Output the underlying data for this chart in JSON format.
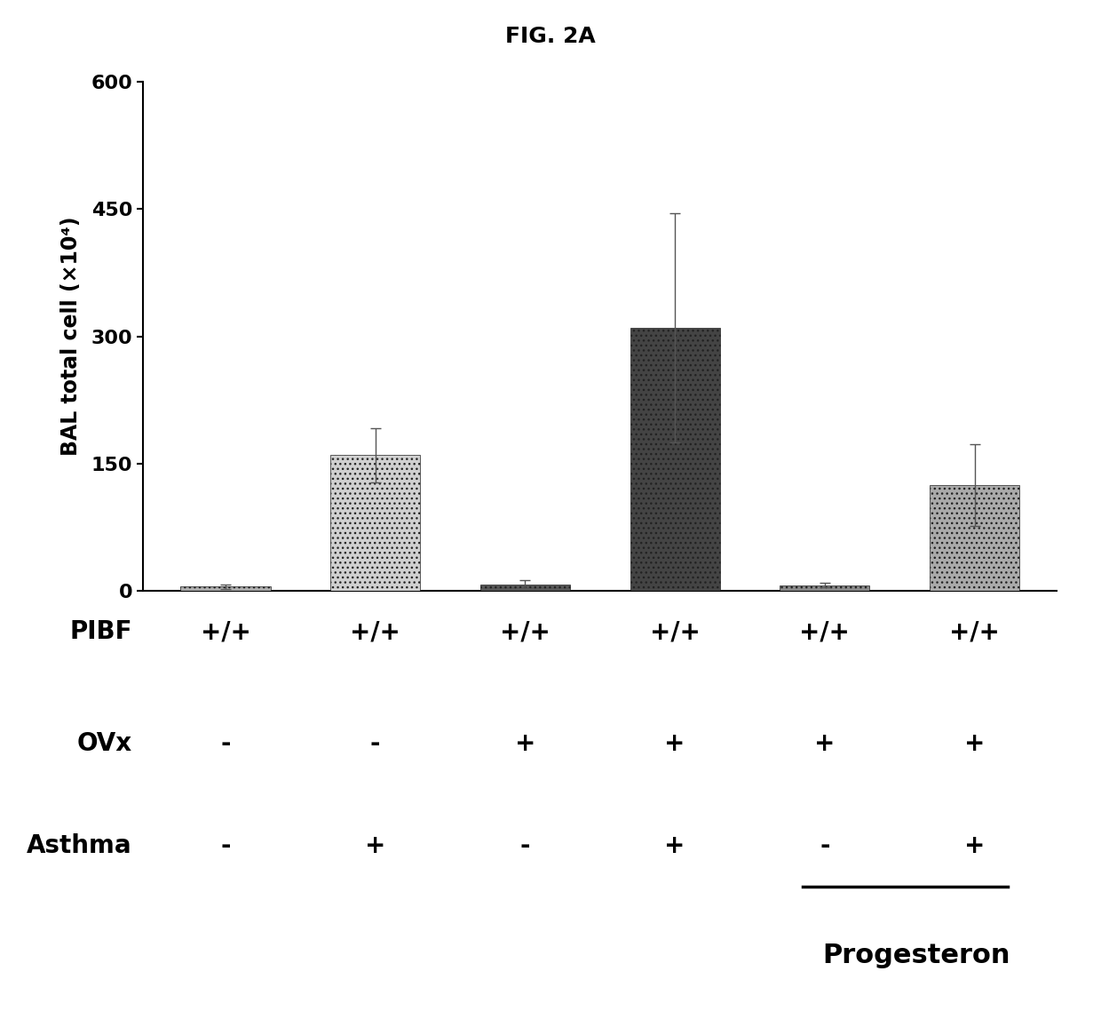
{
  "title": "FIG. 2A",
  "ylabel": "BAL total cell (×10⁴)",
  "bar_values": [
    5,
    160,
    8,
    310,
    7,
    125
  ],
  "bar_errors": [
    3,
    32,
    5,
    135,
    3,
    48
  ],
  "bar_colors": [
    "#aaaaaa",
    "#d0d0d0",
    "#555555",
    "#444444",
    "#888888",
    "#aaaaaa"
  ],
  "bar_hatches": [
    "...",
    "...",
    "...",
    "...",
    "...",
    "..."
  ],
  "bar_positions": [
    0,
    1,
    2,
    3,
    4,
    5
  ],
  "bar_width": 0.6,
  "ylim": [
    0,
    600
  ],
  "yticks": [
    0,
    150,
    300,
    450,
    600
  ],
  "pibf_labels": [
    "+/+",
    "+/+",
    "+/+",
    "+/+",
    "+/+",
    "+/+"
  ],
  "ovx_labels": [
    "-",
    "-",
    "+",
    "+",
    "+",
    "+"
  ],
  "asthma_labels": [
    "-",
    "+",
    "-",
    "+",
    "-",
    "+"
  ],
  "row_labels": [
    "PIBF",
    "OVx",
    "Asthma"
  ],
  "progesterone_label": "Progesteron",
  "background_color": "#ffffff",
  "title_fontsize": 18,
  "ylabel_fontsize": 17,
  "tick_fontsize": 16,
  "row_label_fontsize": 20,
  "symbol_fontsize": 20,
  "progesterone_fontsize": 22,
  "error_bar_capsize": 4,
  "error_bar_color": "#555555",
  "xlim_left": -0.55,
  "xlim_right": 5.55
}
